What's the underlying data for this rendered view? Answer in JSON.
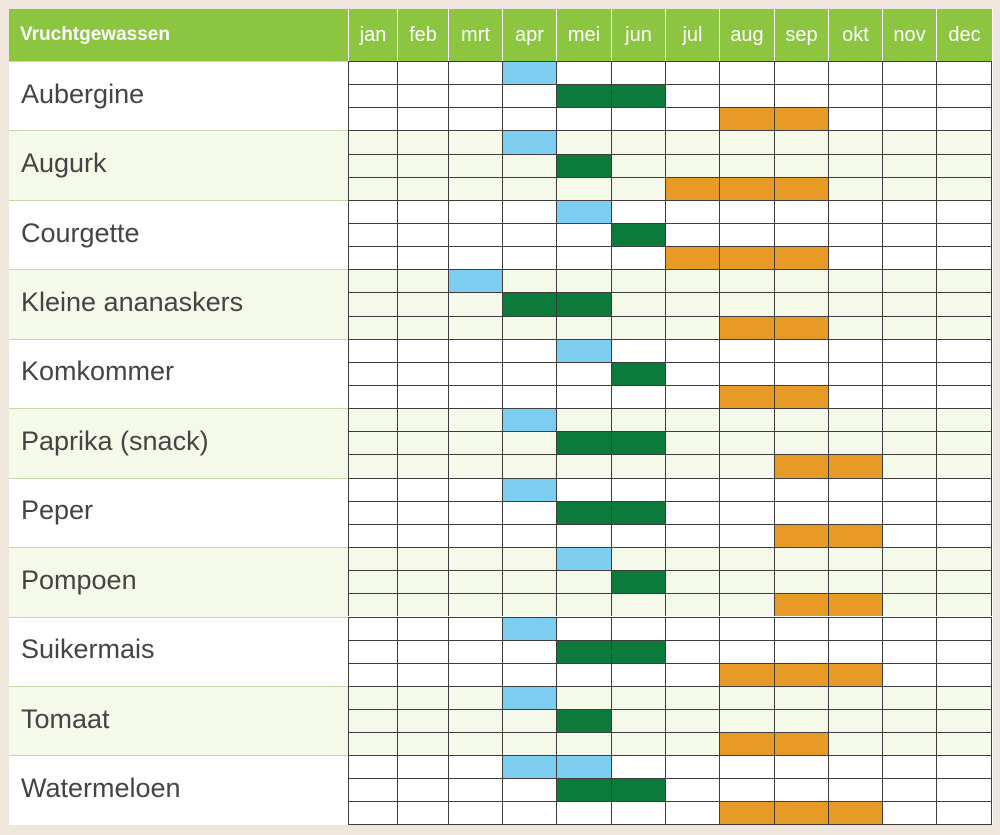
{
  "header": {
    "title": "Vruchtgewassen",
    "months": [
      "jan",
      "feb",
      "mrt",
      "apr",
      "mei",
      "jun",
      "jul",
      "aug",
      "sep",
      "okt",
      "nov",
      "dec"
    ]
  },
  "colors": {
    "header": "#8cc540",
    "sow": "#7ccdf0",
    "plant": "#0b7a3a",
    "harvest": "#e79b26",
    "alt_row": "#f4f9ea"
  },
  "chart_data": {
    "type": "table",
    "title": "Vruchtgewassen",
    "categories": [
      "jan",
      "feb",
      "mrt",
      "apr",
      "mei",
      "jun",
      "jul",
      "aug",
      "sep",
      "okt",
      "nov",
      "dec"
    ],
    "crops": [
      {
        "name": "Aubergine",
        "sow": [
          "apr"
        ],
        "plant": [
          "mei",
          "jun"
        ],
        "harvest": [
          "aug",
          "sep"
        ]
      },
      {
        "name": "Augurk",
        "sow": [
          "apr"
        ],
        "plant": [
          "mei"
        ],
        "harvest": [
          "jul",
          "aug",
          "sep"
        ]
      },
      {
        "name": "Courgette",
        "sow": [
          "mei"
        ],
        "plant": [
          "jun"
        ],
        "harvest": [
          "jul",
          "aug",
          "sep"
        ]
      },
      {
        "name": "Kleine ananaskers",
        "sow": [
          "mrt"
        ],
        "plant": [
          "apr",
          "mei"
        ],
        "harvest": [
          "aug",
          "sep"
        ]
      },
      {
        "name": "Komkommer",
        "sow": [
          "mei"
        ],
        "plant": [
          "jun"
        ],
        "harvest": [
          "aug",
          "sep"
        ]
      },
      {
        "name": "Paprika (snack)",
        "sow": [
          "apr"
        ],
        "plant": [
          "mei",
          "jun"
        ],
        "harvest": [
          "sep",
          "okt"
        ]
      },
      {
        "name": "Peper",
        "sow": [
          "apr"
        ],
        "plant": [
          "mei",
          "jun"
        ],
        "harvest": [
          "sep",
          "okt"
        ]
      },
      {
        "name": "Pompoen",
        "sow": [
          "mei"
        ],
        "plant": [
          "jun"
        ],
        "harvest": [
          "sep",
          "okt"
        ]
      },
      {
        "name": "Suikermais",
        "sow": [
          "apr"
        ],
        "plant": [
          "mei",
          "jun"
        ],
        "harvest": [
          "aug",
          "sep",
          "okt"
        ]
      },
      {
        "name": "Tomaat",
        "sow": [
          "apr"
        ],
        "plant": [
          "mei"
        ],
        "harvest": [
          "aug",
          "sep"
        ]
      },
      {
        "name": "Watermeloen",
        "sow": [
          "apr",
          "mei"
        ],
        "plant": [
          "mei",
          "jun"
        ],
        "harvest": [
          "aug",
          "sep",
          "okt"
        ]
      }
    ]
  }
}
